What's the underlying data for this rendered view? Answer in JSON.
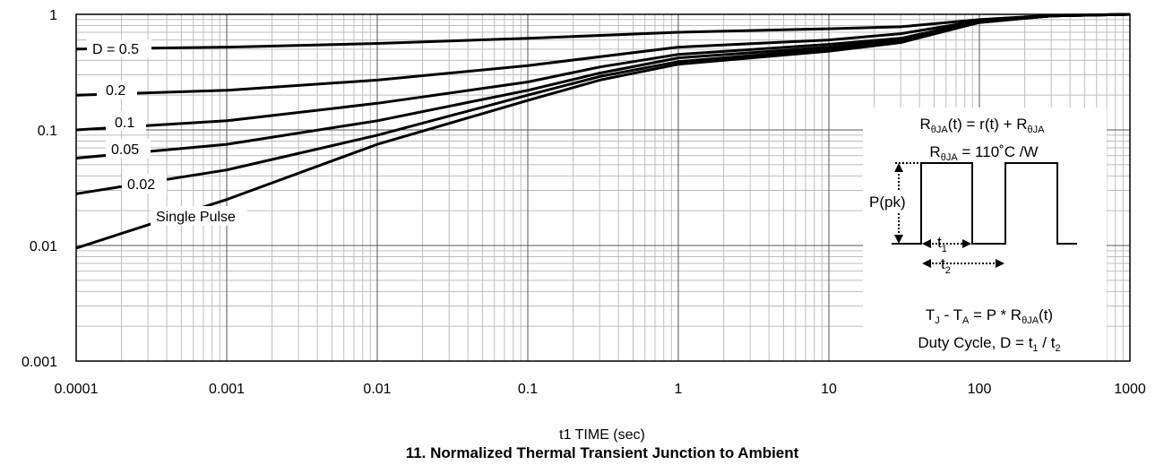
{
  "chart_data": {
    "type": "line",
    "title": "11. Normalized Thermal Transient Junction to Ambient",
    "xlabel": "t1 TIME (sec)",
    "ylabel": "",
    "xscale": "log",
    "yscale": "log",
    "xlim": [
      0.0001,
      1000
    ],
    "ylim": [
      0.001,
      1
    ],
    "grid": true,
    "x_ticks": [
      "0.0001",
      "0.001",
      "0.01",
      "0.1",
      "1",
      "10",
      "100",
      "1000"
    ],
    "y_ticks": [
      "0.001",
      "0.01",
      "0.1",
      "1"
    ],
    "series": [
      {
        "name": "D = 0.5",
        "x": [
          0.0001,
          0.001,
          0.01,
          0.1,
          1,
          10,
          30,
          100,
          300,
          1000
        ],
        "y": [
          0.5,
          0.52,
          0.56,
          0.62,
          0.7,
          0.75,
          0.78,
          0.9,
          0.98,
          1.0
        ]
      },
      {
        "name": "0.2",
        "x": [
          0.0001,
          0.001,
          0.01,
          0.1,
          1,
          10,
          30,
          100,
          300,
          1000
        ],
        "y": [
          0.2,
          0.22,
          0.27,
          0.36,
          0.52,
          0.6,
          0.68,
          0.88,
          0.97,
          1.0
        ]
      },
      {
        "name": "0.1",
        "x": [
          0.0001,
          0.001,
          0.01,
          0.1,
          0.3,
          1,
          10,
          30,
          100,
          300,
          1000
        ],
        "y": [
          0.1,
          0.12,
          0.17,
          0.26,
          0.35,
          0.45,
          0.55,
          0.62,
          0.87,
          0.97,
          1.0
        ]
      },
      {
        "name": "0.05",
        "x": [
          0.0001,
          0.001,
          0.01,
          0.1,
          0.3,
          1,
          10,
          30,
          100,
          300,
          1000
        ],
        "y": [
          0.057,
          0.075,
          0.12,
          0.22,
          0.31,
          0.42,
          0.52,
          0.6,
          0.86,
          0.97,
          1.0
        ]
      },
      {
        "name": "0.02",
        "x": [
          0.0001,
          0.001,
          0.01,
          0.1,
          0.3,
          1,
          10,
          30,
          100,
          300,
          1000
        ],
        "y": [
          0.028,
          0.045,
          0.09,
          0.2,
          0.29,
          0.39,
          0.5,
          0.58,
          0.85,
          0.97,
          1.0
        ]
      },
      {
        "name": "Single Pulse",
        "x": [
          0.0001,
          0.001,
          0.01,
          0.1,
          0.3,
          1,
          10,
          30,
          100,
          300,
          1000
        ],
        "y": [
          0.0095,
          0.025,
          0.075,
          0.18,
          0.27,
          0.37,
          0.48,
          0.57,
          0.85,
          0.97,
          1.0
        ]
      }
    ]
  },
  "labels": {
    "d05": "D = 0.5",
    "d02": "0.2",
    "d01": "0.1",
    "d005": "0.05",
    "d002": "0.02",
    "single": "Single Pulse"
  },
  "inset": {
    "line1_prefix": "R",
    "line1_sub": "θJA",
    "line1_rest": "(t) = r(t) + R",
    "line1_sub2": "θJA",
    "line2_prefix": "R",
    "line2_sub": "θJA",
    "line2_rest": " = 110˚C /W",
    "ppk": "P(pk)",
    "t1_main": "t",
    "t1_sub": "1",
    "t2_main": "t",
    "t2_sub": "2",
    "line3_a": "T",
    "line3_a_sub": "J",
    "line3_b": " - T",
    "line3_b_sub": "A",
    "line3_c": " = P * R",
    "line3_c_sub": "θJA",
    "line3_d": "(t)",
    "line4_a": "Duty Cycle, D = t",
    "line4_a_sub": "1",
    "line4_b": " / t",
    "line4_b_sub": "2"
  }
}
